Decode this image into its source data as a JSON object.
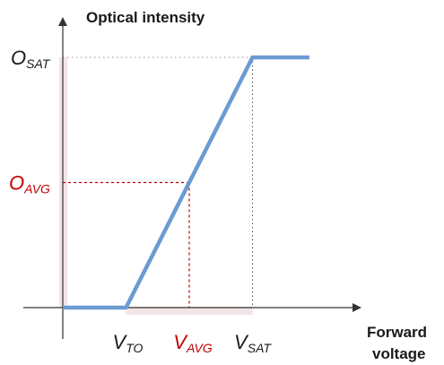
{
  "chart_data": {
    "type": "line",
    "y_axis_title": "Optical intensity",
    "x_axis_title_line1": "Forward",
    "x_axis_title_line2": "voltage",
    "x_ticks": [
      {
        "key": "vto",
        "main": "V",
        "sub": "TO",
        "value": 1,
        "color": "#1a1a1a"
      },
      {
        "key": "vavg",
        "main": "V",
        "sub": "AVG",
        "value": 2,
        "color": "#c00000"
      },
      {
        "key": "vsat",
        "main": "V",
        "sub": "SAT",
        "value": 3,
        "color": "#1a1a1a"
      }
    ],
    "y_ticks": [
      {
        "key": "osat",
        "main": "O",
        "sub": "SAT",
        "value": 1,
        "color": "#1a1a1a"
      },
      {
        "key": "oavg",
        "main": "O",
        "sub": "AVG",
        "value": 0.5,
        "color": "#c00000"
      }
    ],
    "series": [
      {
        "color": "#6b9bd2",
        "x": [
          0,
          1,
          3,
          3.9
        ],
        "y": [
          0,
          0,
          1,
          1
        ]
      }
    ],
    "reference_point": {
      "x": 2,
      "y": 0.5
    },
    "xlim": [
      0,
      4.2
    ],
    "ylim": [
      0,
      1.15
    ],
    "colors": {
      "curve": "#6b9bd2",
      "highlight": "#c00000",
      "band": "#f2e2e2",
      "axis": "#333333"
    }
  }
}
